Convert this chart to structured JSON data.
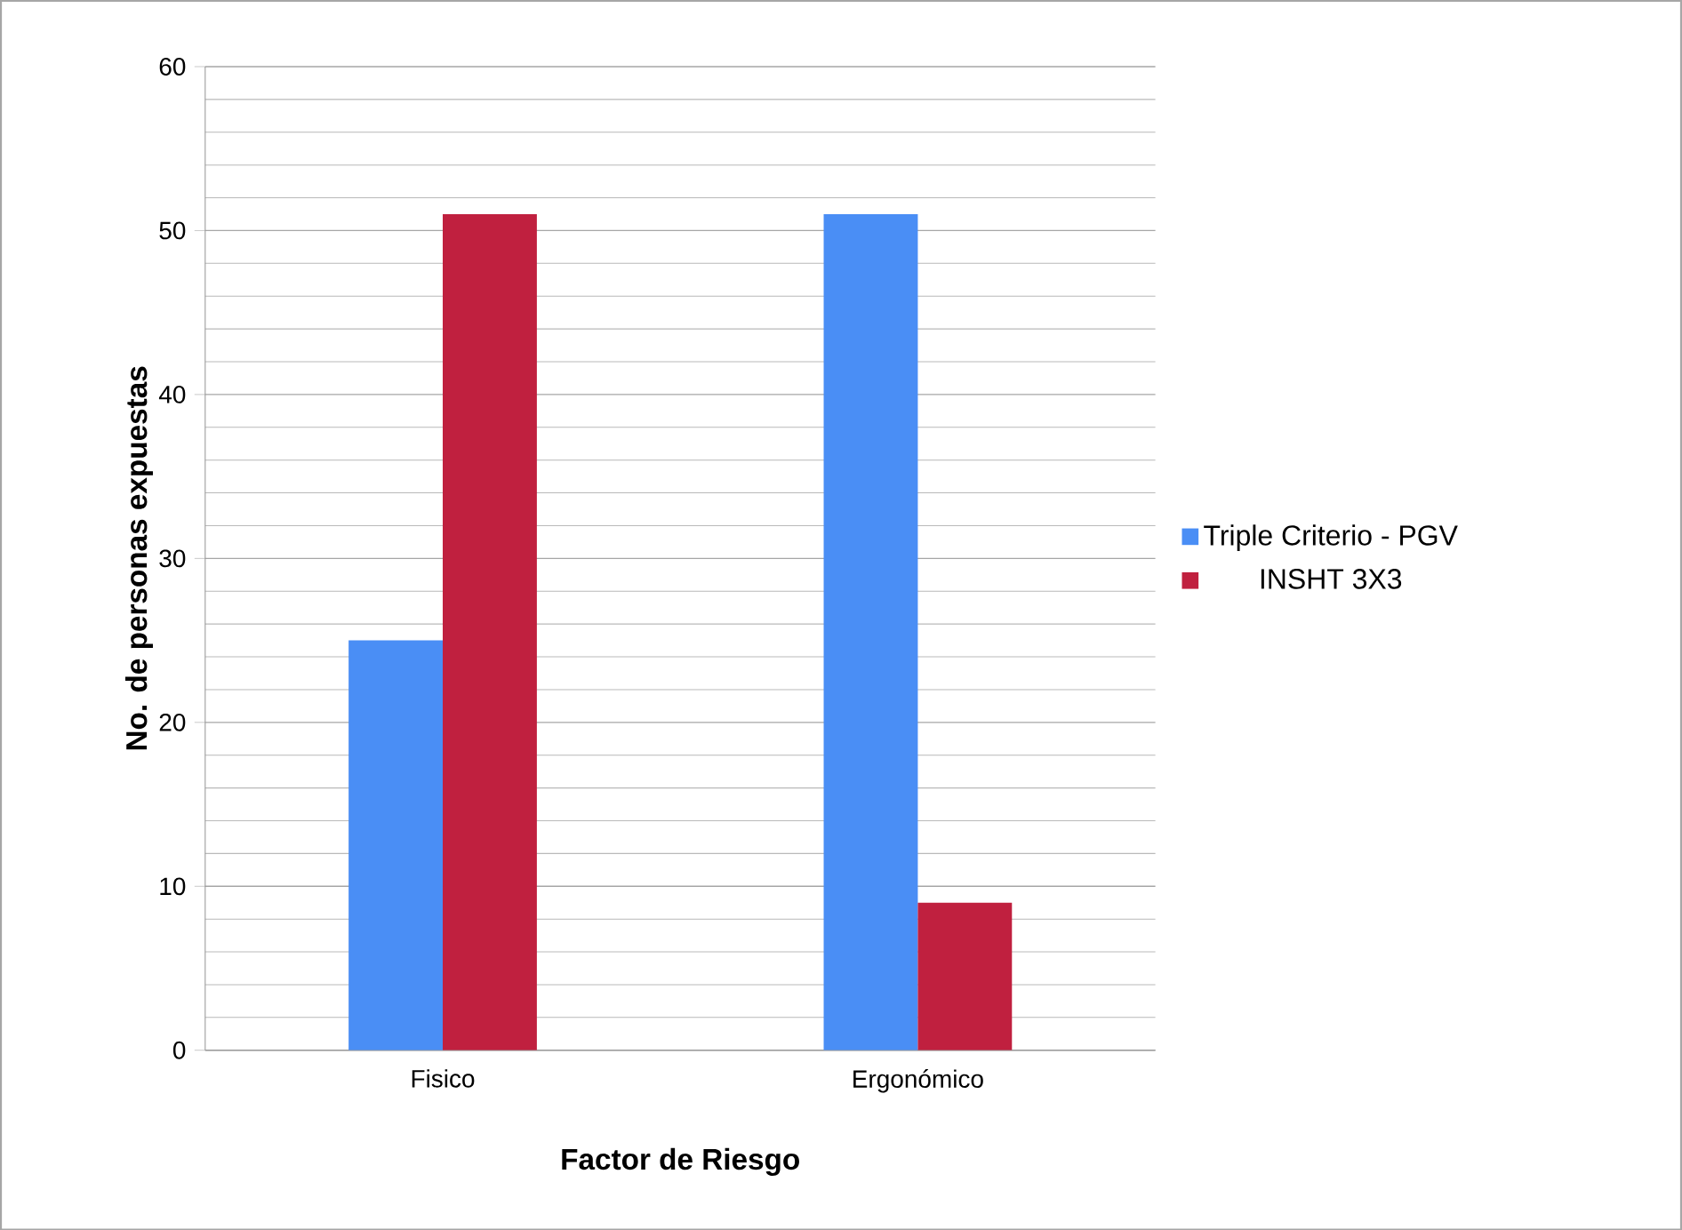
{
  "chart_data": {
    "type": "bar",
    "xlabel": "Factor de Riesgo",
    "ylabel": "No. de personas expuestas",
    "categories": [
      "Fisico",
      "Ergonómico"
    ],
    "series": [
      {
        "name": "Triple Criterio - PGV",
        "color": "#4a8ef5",
        "values": [
          25,
          51
        ]
      },
      {
        "name": "INSHT 3X3",
        "color": "#c0203f",
        "values": [
          51,
          9
        ]
      }
    ],
    "ylim": [
      0,
      60
    ],
    "yticks": [
      0,
      10,
      20,
      30,
      40,
      50,
      60
    ],
    "grid": "y",
    "legend": "right"
  }
}
